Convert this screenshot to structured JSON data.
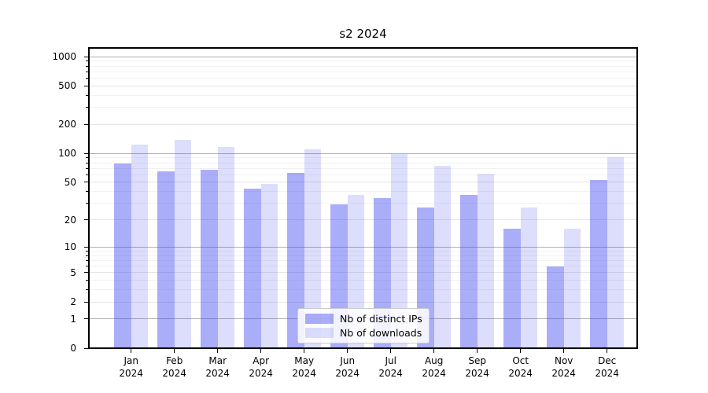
{
  "title": "s2 2024",
  "chart_data": {
    "type": "bar",
    "title": "s2 2024",
    "categories": [
      "Jan 2024",
      "Feb 2024",
      "Mar 2024",
      "Apr 2024",
      "May 2024",
      "Jun 2024",
      "Jul 2024",
      "Aug 2024",
      "Sep 2024",
      "Oct 2024",
      "Nov 2024",
      "Dec 2024"
    ],
    "series": [
      {
        "name": "Nb of distinct IPs",
        "color": "rgba(66,73,237,0.45)",
        "values": [
          78,
          65,
          68,
          43,
          63,
          29,
          34,
          27,
          37,
          16,
          6,
          53
        ]
      },
      {
        "name": "Nb of downloads",
        "color": "rgba(66,73,237,0.18)",
        "values": [
          123,
          139,
          117,
          48,
          110,
          37,
          98,
          74,
          61,
          27,
          16,
          92
        ]
      }
    ],
    "yscale": "log1p",
    "y_ticks": [
      0,
      1,
      2,
      5,
      10,
      20,
      50,
      100,
      200,
      500,
      1000
    ],
    "y_minor_ticks": [
      3,
      4,
      6,
      7,
      8,
      9,
      30,
      40,
      60,
      70,
      80,
      90,
      300,
      400,
      600,
      700,
      800,
      900
    ],
    "ylim": [
      0,
      1250
    ],
    "grid": true,
    "legend_position": "lower center",
    "xlabel": "",
    "ylabel": ""
  },
  "colors": {
    "bar_dark": "rgba(66,73,237,0.45)",
    "bar_light": "rgba(66,73,237,0.18)",
    "grid_decade": "#b0b0b0",
    "grid_major": "#e4e4e4",
    "grid_minor": "#f2f2f2",
    "spine": "#000000",
    "legend_border": "#cccccc"
  }
}
